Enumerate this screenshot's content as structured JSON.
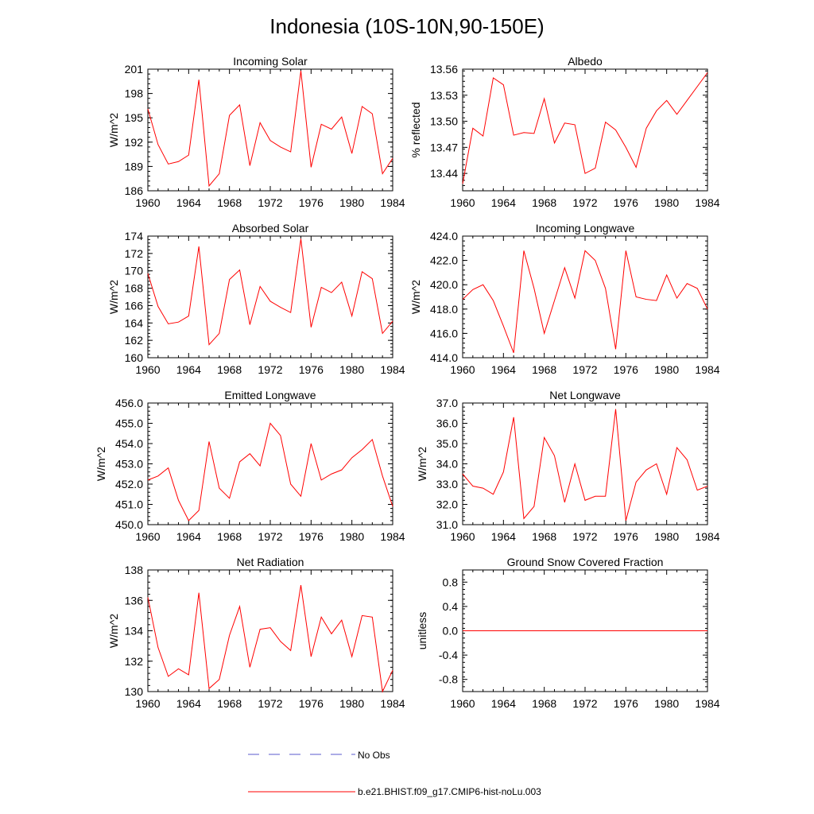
{
  "title": "Indonesia (10S-10N,90-150E)",
  "colors": {
    "model": "#ff0000",
    "obs": "#5a5acd",
    "axis": "#000000"
  },
  "legend": [
    {
      "label": "No Obs",
      "style": "dashed",
      "color": "#5a5acd"
    },
    {
      "label": "b.e21.BHIST.f09_g17.CMIP6-hist-noLu.003",
      "style": "solid",
      "color": "#ff0000"
    }
  ],
  "chart_data": [
    {
      "type": "line",
      "title": "Incoming Solar",
      "ylabel": "W/m^2",
      "xlim": [
        1960,
        1984
      ],
      "xticks": [
        "1960",
        "1964",
        "1968",
        "1972",
        "1976",
        "1980",
        "1984"
      ],
      "ylim": [
        186,
        201
      ],
      "yticks": [
        "186",
        "189",
        "192",
        "195",
        "198",
        "201"
      ],
      "series": [
        {
          "x": [
            1960,
            1961,
            1962,
            1963,
            1964,
            1965,
            1966,
            1967,
            1968,
            1969,
            1970,
            1971,
            1972,
            1973,
            1974,
            1975,
            1976,
            1977,
            1978,
            1979,
            1980,
            1981,
            1982,
            1983,
            1984
          ],
          "values": [
            196.1,
            191.7,
            189.3,
            189.6,
            190.4,
            199.7,
            186.6,
            188.1,
            195.3,
            196.6,
            189.1,
            194.4,
            192.2,
            191.4,
            190.8,
            200.8,
            188.9,
            194.2,
            193.6,
            195.1,
            190.6,
            196.4,
            195.5,
            188.1,
            190.0
          ]
        }
      ]
    },
    {
      "type": "line",
      "title": "Albedo",
      "ylabel": "% reflected",
      "xlim": [
        1960,
        1984
      ],
      "xticks": [
        "1960",
        "1964",
        "1968",
        "1972",
        "1976",
        "1980",
        "1984"
      ],
      "ylim": [
        13.42,
        13.56
      ],
      "yticks": [
        "13.44",
        "13.47",
        "13.50",
        "13.53",
        "13.56"
      ],
      "series": [
        {
          "x": [
            1960,
            1961,
            1962,
            1963,
            1964,
            1965,
            1966,
            1967,
            1968,
            1969,
            1970,
            1971,
            1972,
            1973,
            1974,
            1975,
            1976,
            1977,
            1978,
            1979,
            1980,
            1981,
            1982,
            1983,
            1984
          ],
          "values": [
            13.428,
            13.492,
            13.483,
            13.55,
            13.542,
            13.484,
            13.487,
            13.486,
            13.526,
            13.475,
            13.498,
            13.496,
            13.44,
            13.446,
            13.499,
            13.49,
            13.47,
            13.447,
            13.492,
            13.512,
            13.524,
            13.508,
            13.524,
            13.54,
            13.556
          ]
        }
      ]
    },
    {
      "type": "line",
      "title": "Absorbed Solar",
      "ylabel": "W/m^2",
      "xlim": [
        1960,
        1984
      ],
      "xticks": [
        "1960",
        "1964",
        "1968",
        "1972",
        "1976",
        "1980",
        "1984"
      ],
      "ylim": [
        160,
        174
      ],
      "yticks": [
        "160",
        "162",
        "164",
        "166",
        "168",
        "170",
        "172",
        "174"
      ],
      "series": [
        {
          "x": [
            1960,
            1961,
            1962,
            1963,
            1964,
            1965,
            1966,
            1967,
            1968,
            1969,
            1970,
            1971,
            1972,
            1973,
            1974,
            1975,
            1976,
            1977,
            1978,
            1979,
            1980,
            1981,
            1982,
            1983,
            1984
          ],
          "values": [
            169.7,
            165.9,
            163.9,
            164.1,
            164.8,
            172.8,
            161.5,
            162.8,
            169.0,
            170.1,
            163.8,
            168.2,
            166.5,
            165.8,
            165.2,
            173.7,
            163.5,
            168.1,
            167.5,
            168.7,
            164.8,
            169.9,
            169.1,
            162.8,
            164.2
          ]
        }
      ]
    },
    {
      "type": "line",
      "title": "Incoming Longwave",
      "ylabel": "W/m^2",
      "xlim": [
        1960,
        1984
      ],
      "xticks": [
        "1960",
        "1964",
        "1968",
        "1972",
        "1976",
        "1980",
        "1984"
      ],
      "ylim": [
        414.0,
        424.0
      ],
      "yticks": [
        "414.0",
        "416.0",
        "418.0",
        "420.0",
        "422.0",
        "424.0"
      ],
      "series": [
        {
          "x": [
            1960,
            1961,
            1962,
            1963,
            1964,
            1965,
            1966,
            1967,
            1968,
            1969,
            1970,
            1971,
            1972,
            1973,
            1974,
            1975,
            1976,
            1977,
            1978,
            1979,
            1980,
            1981,
            1982,
            1983,
            1984
          ],
          "values": [
            418.8,
            419.6,
            420.0,
            418.7,
            416.6,
            414.4,
            422.8,
            419.7,
            416.0,
            418.7,
            421.4,
            418.9,
            422.8,
            422.0,
            419.7,
            414.7,
            422.8,
            419.0,
            418.8,
            418.7,
            420.8,
            418.9,
            420.1,
            419.7,
            418.0
          ]
        }
      ]
    },
    {
      "type": "line",
      "title": "Emitted Longwave",
      "ylabel": "W/m^2",
      "xlim": [
        1960,
        1984
      ],
      "xticks": [
        "1960",
        "1964",
        "1968",
        "1972",
        "1976",
        "1980",
        "1984"
      ],
      "ylim": [
        450.0,
        456.0
      ],
      "yticks": [
        "450.0",
        "451.0",
        "452.0",
        "453.0",
        "454.0",
        "455.0",
        "456.0"
      ],
      "series": [
        {
          "x": [
            1960,
            1961,
            1962,
            1963,
            1964,
            1965,
            1966,
            1967,
            1968,
            1969,
            1970,
            1971,
            1972,
            1973,
            1974,
            1975,
            1976,
            1977,
            1978,
            1979,
            1980,
            1981,
            1982,
            1983,
            1984
          ],
          "values": [
            452.2,
            452.4,
            452.8,
            451.2,
            450.2,
            450.7,
            454.1,
            451.8,
            451.3,
            453.1,
            453.5,
            452.9,
            455.0,
            454.4,
            452.0,
            451.4,
            454.0,
            452.2,
            452.5,
            452.7,
            453.3,
            453.7,
            454.2,
            452.4,
            450.9
          ]
        }
      ]
    },
    {
      "type": "line",
      "title": "Net Longwave",
      "ylabel": "W/m^2",
      "xlim": [
        1960,
        1984
      ],
      "xticks": [
        "1960",
        "1964",
        "1968",
        "1972",
        "1976",
        "1980",
        "1984"
      ],
      "ylim": [
        31.0,
        37.0
      ],
      "yticks": [
        "31.0",
        "32.0",
        "33.0",
        "34.0",
        "35.0",
        "36.0",
        "37.0"
      ],
      "series": [
        {
          "x": [
            1960,
            1961,
            1962,
            1963,
            1964,
            1965,
            1966,
            1967,
            1968,
            1969,
            1970,
            1971,
            1972,
            1973,
            1974,
            1975,
            1976,
            1977,
            1978,
            1979,
            1980,
            1981,
            1982,
            1983,
            1984
          ],
          "values": [
            33.5,
            32.9,
            32.8,
            32.5,
            33.6,
            36.3,
            31.3,
            31.9,
            35.3,
            34.4,
            32.1,
            34.0,
            32.2,
            32.4,
            32.4,
            36.7,
            31.2,
            33.1,
            33.7,
            34.0,
            32.5,
            34.8,
            34.2,
            32.7,
            32.9
          ]
        }
      ]
    },
    {
      "type": "line",
      "title": "Net Radiation",
      "ylabel": "W/m^2",
      "xlim": [
        1960,
        1984
      ],
      "xticks": [
        "1960",
        "1964",
        "1968",
        "1972",
        "1976",
        "1980",
        "1984"
      ],
      "ylim": [
        130,
        138
      ],
      "yticks": [
        "130",
        "132",
        "134",
        "136",
        "138"
      ],
      "series": [
        {
          "x": [
            1960,
            1961,
            1962,
            1963,
            1964,
            1965,
            1966,
            1967,
            1968,
            1969,
            1970,
            1971,
            1972,
            1973,
            1974,
            1975,
            1976,
            1977,
            1978,
            1979,
            1980,
            1981,
            1982,
            1983,
            1984
          ],
          "values": [
            136.2,
            132.9,
            131.0,
            131.5,
            131.1,
            136.5,
            130.2,
            130.8,
            133.7,
            135.6,
            131.6,
            134.1,
            134.2,
            133.3,
            132.7,
            137.0,
            132.3,
            134.9,
            133.8,
            134.7,
            132.3,
            135.0,
            134.9,
            130.0,
            131.4
          ]
        }
      ]
    },
    {
      "type": "line",
      "title": "Ground Snow Covered Fraction",
      "ylabel": "unitless",
      "xlim": [
        1960,
        1984
      ],
      "xticks": [
        "1960",
        "1964",
        "1968",
        "1972",
        "1976",
        "1980",
        "1984"
      ],
      "ylim": [
        -1.0,
        1.0
      ],
      "yticks": [
        "-0.8",
        "-0.4",
        "0.0",
        "0.4",
        "0.8"
      ],
      "series": [
        {
          "x": [
            1960,
            1984
          ],
          "values": [
            0.0,
            0.0
          ]
        }
      ]
    }
  ]
}
